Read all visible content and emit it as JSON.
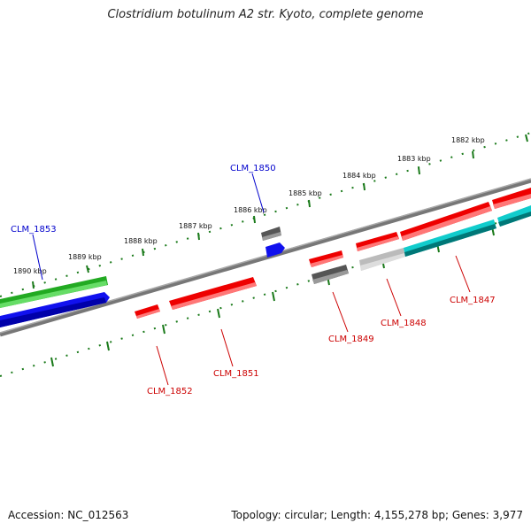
{
  "title": "Clostridium botulinum A2 str. Kyoto, complete genome",
  "footer": {
    "accession": "Accession: NC_012563",
    "topology": "Topology: circular; Length: 4,155,278 bp; Genes: 3,977"
  },
  "colors": {
    "forward_strand": "#ee0000",
    "reverse_strand": "#ee0000",
    "backbone": "#777777",
    "tick": "#1a7a1a",
    "label_forward": "#0000cc",
    "label_reverse": "#cc0000",
    "green_feature": "#33cc33",
    "blue_feature": "#1111ee",
    "cyan_feature": "#11cccc",
    "gray_feature": "#666666"
  },
  "scale_labels": [
    "1882 kbp",
    "1883 kbp",
    "1884 kbp",
    "1885 kbp",
    "1886 kbp",
    "1887 kbp",
    "1888 kbp",
    "1889 kbp",
    "1890 kbp"
  ],
  "gene_labels": [
    "CLM_1853",
    "CLM_1850",
    "CLM_1852",
    "CLM_1851",
    "CLM_1849",
    "CLM_1848",
    "CLM_1847"
  ]
}
